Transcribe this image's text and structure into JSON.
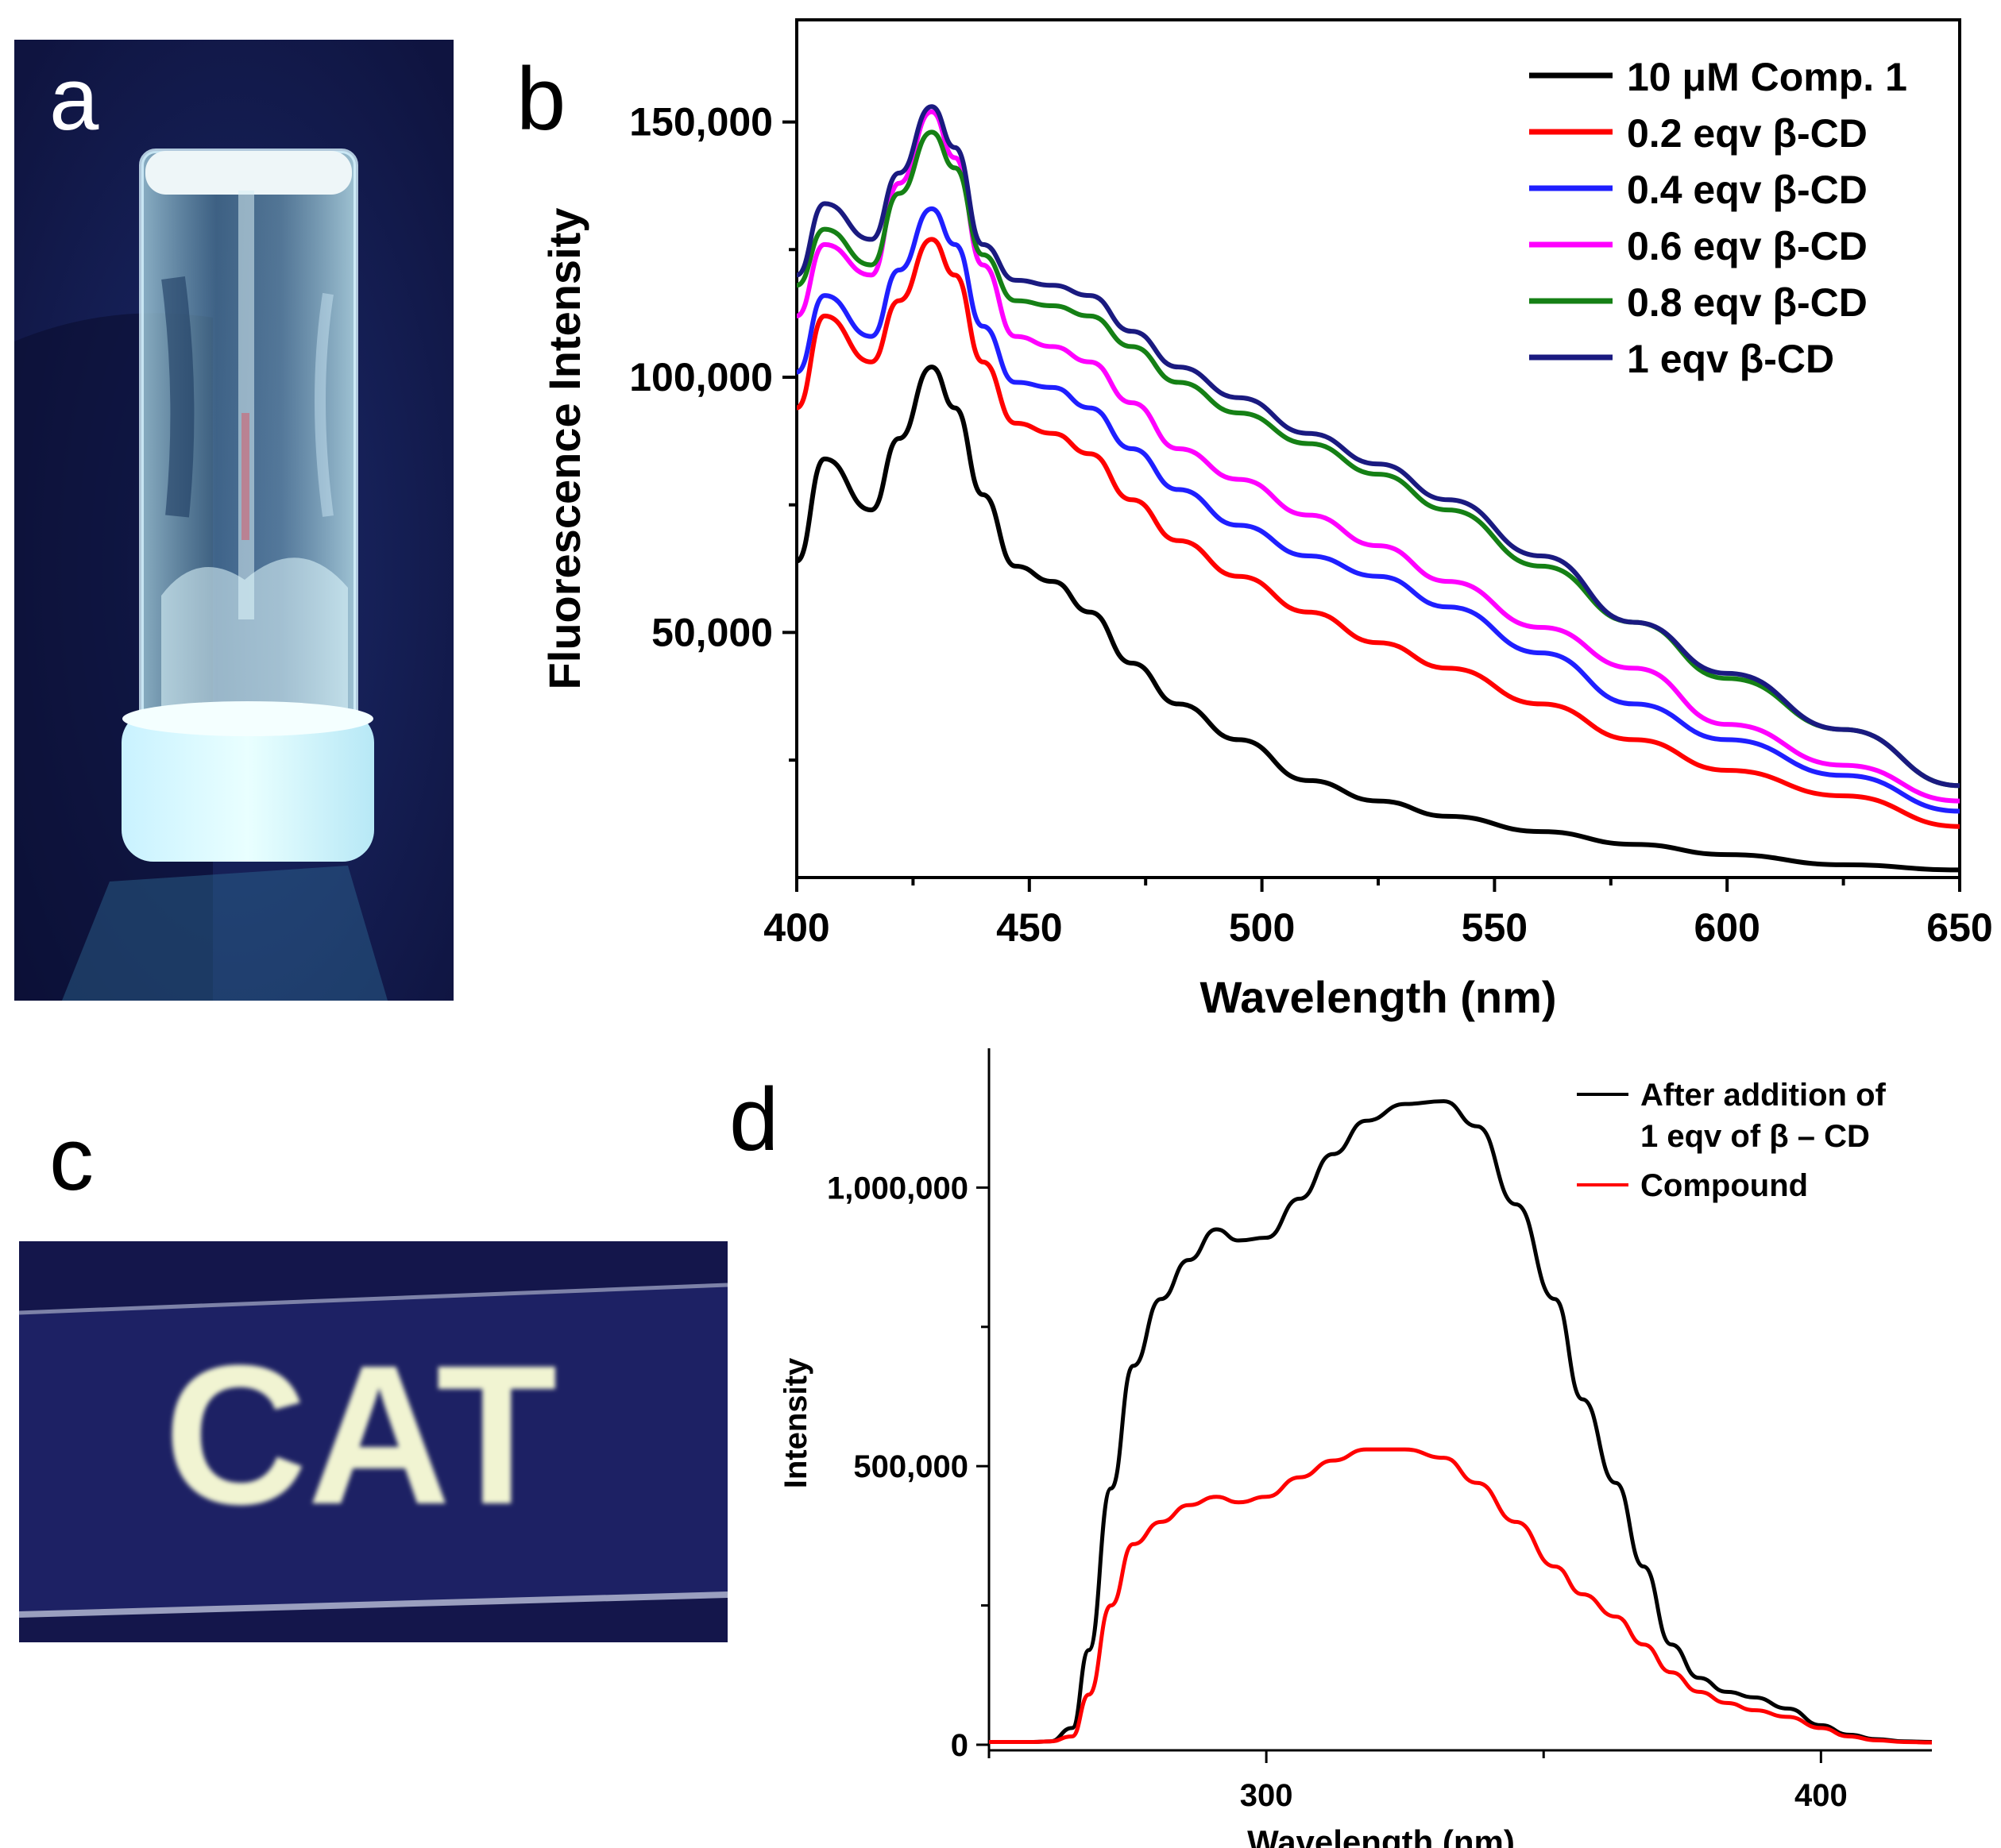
{
  "panel_labels": {
    "a": "a",
    "b": "b",
    "c": "c",
    "d": "d"
  },
  "photo_c": {
    "text": "CAT"
  },
  "colors": {
    "comp1": "#000000",
    "cd02": "#ff0000",
    "cd04": "#1f1fff",
    "cd06": "#ff00ff",
    "cd08": "#158015",
    "cd10": "#1a1a80",
    "photo_bg": "#13164a",
    "glow": "#bfefff"
  },
  "chart_data": [
    {
      "type": "line",
      "panel": "b",
      "xlabel": "Wavelength (nm)",
      "ylabel": "Fluorescence Intensity",
      "xlim": [
        400,
        650
      ],
      "ylim": [
        2000,
        170000
      ],
      "x_ticks": [
        "400",
        "450",
        "500",
        "550",
        "600",
        "650"
      ],
      "y_ticks": [
        "50,000",
        "100,000",
        "150,000"
      ],
      "y_tick_values": [
        50000,
        100000,
        150000
      ],
      "legend_position": "top-right",
      "series": [
        {
          "name": "10 μM Comp. 1",
          "color": "#000000",
          "x": [
            400,
            406,
            416,
            422,
            429,
            434,
            440,
            447,
            455,
            463,
            472,
            482,
            495,
            510,
            525,
            540,
            560,
            580,
            600,
            625,
            650
          ],
          "y": [
            64000,
            84000,
            74000,
            88000,
            102000,
            94000,
            77000,
            63000,
            60000,
            54000,
            44000,
            36000,
            29000,
            21000,
            17000,
            14000,
            11000,
            8500,
            6500,
            4500,
            3500
          ]
        },
        {
          "name": "0.2 eqv β-CD",
          "color": "#ff0000",
          "x": [
            400,
            406,
            416,
            422,
            429,
            434,
            440,
            447,
            455,
            463,
            472,
            482,
            495,
            510,
            525,
            540,
            560,
            580,
            600,
            625,
            650
          ],
          "y": [
            94000,
            112000,
            103000,
            115000,
            127000,
            120000,
            103000,
            91000,
            89000,
            85000,
            76000,
            68000,
            61000,
            54000,
            48000,
            43000,
            36000,
            29000,
            23000,
            18000,
            12000
          ]
        },
        {
          "name": "0.4 eqv β-CD",
          "color": "#1f1fff",
          "x": [
            400,
            406,
            416,
            422,
            429,
            434,
            440,
            447,
            455,
            463,
            472,
            482,
            495,
            510,
            525,
            540,
            560,
            580,
            600,
            625,
            650
          ],
          "y": [
            101000,
            116000,
            108000,
            121000,
            133000,
            126000,
            110000,
            99000,
            98000,
            94000,
            86000,
            78000,
            71000,
            65000,
            61000,
            55000,
            46000,
            36000,
            29000,
            22000,
            15000
          ]
        },
        {
          "name": "0.6 eqv β-CD",
          "color": "#ff00ff",
          "x": [
            400,
            406,
            416,
            422,
            429,
            434,
            440,
            447,
            455,
            463,
            472,
            482,
            495,
            510,
            525,
            540,
            560,
            580,
            600,
            625,
            650
          ],
          "y": [
            112000,
            126000,
            120000,
            138000,
            152000,
            143000,
            122000,
            108000,
            106000,
            103000,
            95000,
            86000,
            80000,
            73000,
            67000,
            60000,
            51000,
            43000,
            32000,
            24000,
            17000
          ]
        },
        {
          "name": "0.8 eqv β-CD",
          "color": "#158015",
          "x": [
            400,
            406,
            416,
            422,
            429,
            434,
            440,
            447,
            455,
            463,
            472,
            482,
            495,
            510,
            525,
            540,
            560,
            580,
            600,
            625,
            650
          ],
          "y": [
            118000,
            129000,
            122000,
            136000,
            148000,
            141000,
            124000,
            115000,
            114000,
            112000,
            106000,
            99000,
            93000,
            87000,
            81000,
            74000,
            63000,
            52000,
            41000,
            31000,
            20000
          ]
        },
        {
          "name": "1 eqv β-CD",
          "color": "#1a1a80",
          "x": [
            400,
            406,
            416,
            422,
            429,
            434,
            440,
            447,
            455,
            463,
            472,
            482,
            495,
            510,
            525,
            540,
            560,
            580,
            600,
            625,
            650
          ],
          "y": [
            120000,
            134000,
            127000,
            140000,
            153000,
            145000,
            126000,
            119000,
            118000,
            116000,
            109000,
            102000,
            96000,
            89000,
            83000,
            76000,
            65000,
            52000,
            42000,
            31000,
            20000
          ]
        }
      ]
    },
    {
      "type": "line",
      "panel": "d",
      "xlabel": "Wavelength (nm)",
      "ylabel": "Intensity",
      "xlim": [
        250,
        420
      ],
      "ylim": [
        -10000,
        1250000
      ],
      "x_ticks": [
        "300",
        "400"
      ],
      "x_tick_values": [
        300,
        400
      ],
      "y_ticks": [
        "0",
        "500,000",
        "1,000,000"
      ],
      "y_tick_values": [
        0,
        500000,
        1000000
      ],
      "legend_position": "top-right",
      "series": [
        {
          "name": "After addition of\n1 eqv of β – CD",
          "color": "#000000",
          "x": [
            250,
            258,
            261,
            265,
            268,
            272,
            276,
            281,
            286,
            291,
            295,
            300,
            306,
            312,
            318,
            325,
            332,
            338,
            345,
            352,
            357,
            363,
            368,
            373,
            378,
            383,
            388,
            394,
            400,
            405,
            410,
            415,
            420
          ],
          "y": [
            5000,
            5000,
            6000,
            30000,
            170000,
            460000,
            680000,
            800000,
            870000,
            925000,
            905000,
            910000,
            980000,
            1060000,
            1120000,
            1150000,
            1155000,
            1110000,
            970000,
            800000,
            620000,
            470000,
            320000,
            180000,
            120000,
            95000,
            85000,
            65000,
            35000,
            18000,
            10000,
            6000,
            5000
          ]
        },
        {
          "name": "Compound",
          "color": "#ff0000",
          "x": [
            250,
            258,
            261,
            265,
            268,
            272,
            276,
            281,
            286,
            291,
            295,
            300,
            306,
            312,
            318,
            325,
            332,
            338,
            345,
            352,
            357,
            363,
            368,
            373,
            378,
            383,
            388,
            394,
            400,
            405,
            410,
            415,
            420
          ],
          "y": [
            5000,
            5000,
            6000,
            15000,
            90000,
            250000,
            360000,
            400000,
            430000,
            445000,
            435000,
            445000,
            480000,
            510000,
            530000,
            530000,
            515000,
            470000,
            400000,
            320000,
            270000,
            230000,
            180000,
            130000,
            95000,
            75000,
            62000,
            50000,
            30000,
            15000,
            8000,
            5000,
            4000
          ]
        }
      ]
    }
  ]
}
